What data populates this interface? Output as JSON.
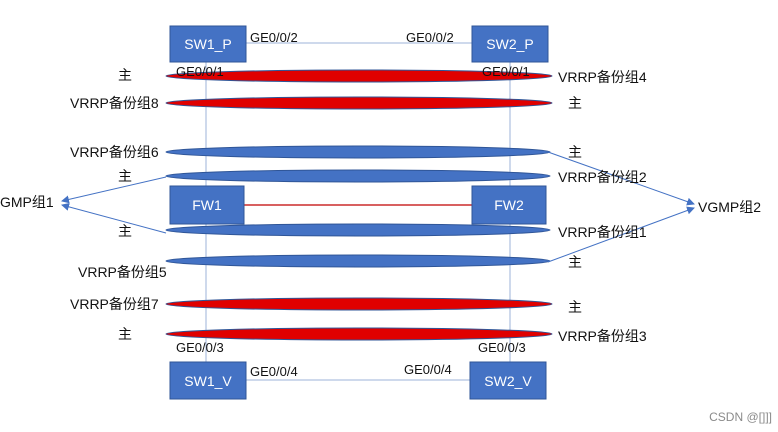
{
  "colors": {
    "box_fill": "#4472C4",
    "box_stroke": "#2F5597",
    "red_link": "#E00000",
    "blue_link": "#4472C4",
    "line": "#9DB3D9",
    "fw_link": "#C00000",
    "arrow": "#4472C4",
    "text": "#111111"
  },
  "devices": {
    "sw1_p": "SW1_P",
    "sw2_p": "SW2_P",
    "fw1": "FW1",
    "fw2": "FW2",
    "sw1_v": "SW1_V",
    "sw2_v": "SW2_V"
  },
  "ports": {
    "sw1_p_right": "GE0/0/2",
    "sw2_p_left": "GE0/0/2",
    "sw1_p_bottom": "GE0/0/1",
    "sw2_p_bottom": "GE0/0/1",
    "sw1_v_top": "GE0/0/3",
    "sw2_v_top": "GE0/0/3",
    "sw1_v_right": "GE0/0/4",
    "sw2_v_left": "GE0/0/4"
  },
  "labels": {
    "left_main_1": "主",
    "left_vrrp8": "VRRP备份组8",
    "left_vrrp6": "VRRP备份组6",
    "left_main_2": "主",
    "left_vgmp1": "GMP组1",
    "left_main_3": "主",
    "left_vrrp5": "VRRP备份组5",
    "left_vrrp7": "VRRP备份组7",
    "left_main_4": "主",
    "right_vrrp4": "VRRP备份组4",
    "right_main_1": "主",
    "right_main_2": "主",
    "right_vrrp2": "VRRP备份组2",
    "right_vgmp2": "VGMP组2",
    "right_vrrp1": "VRRP备份组1",
    "right_main_3": "主",
    "right_main_4": "主",
    "right_vrrp3": "VRRP备份组3"
  },
  "watermark": "CSDN @[]]]"
}
